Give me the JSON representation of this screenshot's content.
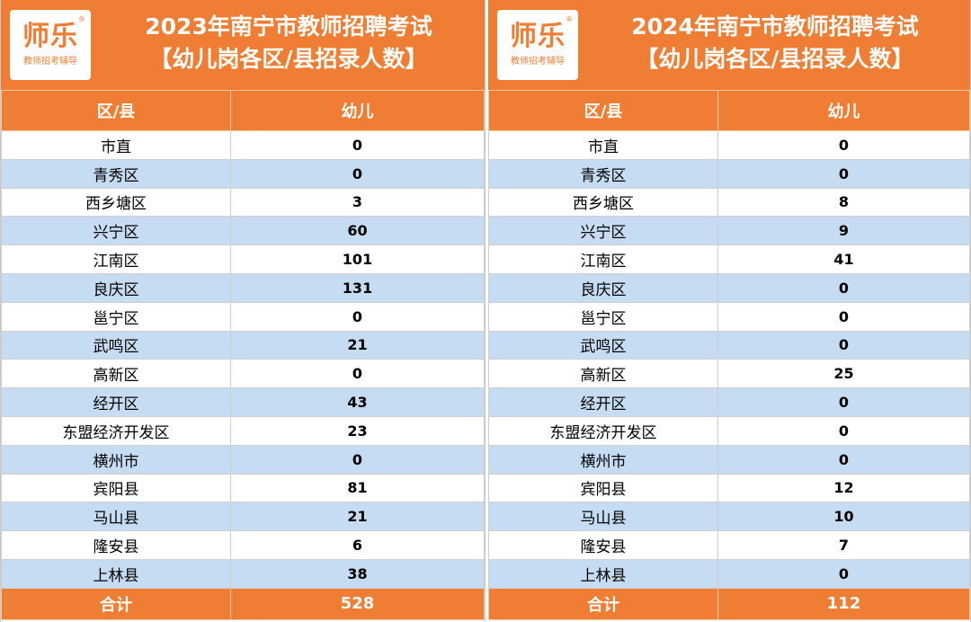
{
  "panels": [
    {
      "logo": {
        "main": "师乐",
        "reg": "®",
        "sub": "教师招考辅导"
      },
      "title_line1": "2023年南宁市教师招聘考试",
      "title_line2": "【幼儿岗各区/县招录人数】",
      "headers": [
        "区/县",
        "幼儿"
      ],
      "rows": [
        [
          "市直",
          "0"
        ],
        [
          "青秀区",
          "0"
        ],
        [
          "西乡塘区",
          "3"
        ],
        [
          "兴宁区",
          "60"
        ],
        [
          "江南区",
          "101"
        ],
        [
          "良庆区",
          "131"
        ],
        [
          "邕宁区",
          "0"
        ],
        [
          "武鸣区",
          "21"
        ],
        [
          "高新区",
          "0"
        ],
        [
          "经开区",
          "43"
        ],
        [
          "东盟经济开发区",
          "23"
        ],
        [
          "横州市",
          "0"
        ],
        [
          "宾阳县",
          "81"
        ],
        [
          "马山县",
          "21"
        ],
        [
          "隆安县",
          "6"
        ],
        [
          "上林县",
          "38"
        ]
      ],
      "total": [
        "合计",
        "528"
      ]
    },
    {
      "logo": {
        "main": "师乐",
        "reg": "®",
        "sub": "教师招考辅导"
      },
      "title_line1": "2024年南宁市教师招聘考试",
      "title_line2": "【幼儿岗各区/县招录人数】",
      "headers": [
        "区/县",
        "幼儿"
      ],
      "rows": [
        [
          "市直",
          "0"
        ],
        [
          "青秀区",
          "0"
        ],
        [
          "西乡塘区",
          "8"
        ],
        [
          "兴宁区",
          "9"
        ],
        [
          "江南区",
          "41"
        ],
        [
          "良庆区",
          "0"
        ],
        [
          "邕宁区",
          "0"
        ],
        [
          "武鸣区",
          "0"
        ],
        [
          "高新区",
          "25"
        ],
        [
          "经开区",
          "0"
        ],
        [
          "东盟经济开发区",
          "0"
        ],
        [
          "横州市",
          "0"
        ],
        [
          "宾阳县",
          "12"
        ],
        [
          "马山县",
          "10"
        ],
        [
          "隆安县",
          "7"
        ],
        [
          "上林县",
          "0"
        ]
      ],
      "total": [
        "合计",
        "112"
      ]
    }
  ],
  "colors": {
    "accent": "#ef7d33",
    "stripe": "#c6dcf2"
  }
}
